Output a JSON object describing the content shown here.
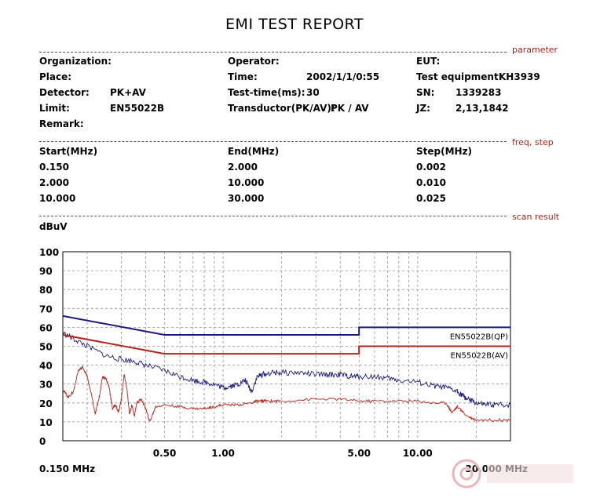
{
  "report": {
    "title": "EMI TEST REPORT",
    "sections": {
      "parameter": "parameter",
      "freq_step": "freq, step",
      "scan_result": "scan result"
    },
    "parameters": {
      "organization_label": "Organization:",
      "operator_label": "Operator:",
      "eut_label": "EUT:",
      "place_label": "Place:",
      "time_label": "Time:",
      "time_value": "2002/1/1/0:55",
      "test_equipment_label": "Test equipment:",
      "test_equipment_value": "KH3939",
      "detector_label": "Detector:",
      "detector_value": "PK+AV",
      "test_time_label": "Test-time(ms):",
      "test_time_value": "30",
      "sn_label": "SN:",
      "sn_value": "1339283",
      "limit_label": "Limit:",
      "limit_value": "EN55022B",
      "transductor_label": "Transductor(PK/AV):",
      "transductor_value": "PK  /  AV",
      "jz_label": "JZ:",
      "jz_value": "2,13,1842",
      "remark_label": "Remark:"
    },
    "freq_table": {
      "headers": [
        "Start(MHz)",
        "End(MHz)",
        "Step(MHz)"
      ],
      "rows": [
        [
          "0.150",
          "2.000",
          "0.002"
        ],
        [
          "2.000",
          "10.000",
          "0.010"
        ],
        [
          "10.000",
          "30.000",
          "0.025"
        ]
      ]
    }
  },
  "chart_data": {
    "type": "line",
    "ylabel": "dBuV",
    "ylim": [
      0,
      100
    ],
    "y_ticks": [
      "100",
      "90",
      "80",
      "70",
      "60",
      "50",
      "40",
      "30",
      "20",
      "10",
      "0"
    ],
    "xscale": "log",
    "xlim": [
      0.15,
      30
    ],
    "x_ticks": [
      {
        "v": 0.5,
        "label": "0.50"
      },
      {
        "v": 1,
        "label": "1.00"
      },
      {
        "v": 5,
        "label": "5.00"
      },
      {
        "v": 10,
        "label": "10.00"
      }
    ],
    "x_start_label": "0.150 MHz",
    "x_end_label": "30.000 MHz",
    "grid": true,
    "colors": {
      "qp_limit": "#1a1a7a",
      "av_limit": "#b22418",
      "pk_trace": "#1a1a7a",
      "av_trace": "#b22418",
      "grid": "#909090"
    },
    "series": [
      {
        "name": "EN55022B(QP)",
        "kind": "limit",
        "x": [
          0.15,
          0.5,
          0.5,
          5,
          5,
          30
        ],
        "y": [
          66,
          56,
          56,
          56,
          60,
          60
        ]
      },
      {
        "name": "EN55022B(AV)",
        "kind": "limit",
        "x": [
          0.15,
          0.5,
          0.5,
          5,
          5,
          30
        ],
        "y": [
          56,
          46,
          46,
          46,
          50,
          50
        ]
      },
      {
        "name": "",
        "kind": "trace",
        "x": [
          0.15,
          0.17,
          0.2,
          0.25,
          0.3,
          0.35,
          0.4,
          0.5,
          0.6,
          0.7,
          0.8,
          0.9,
          1.0,
          1.1,
          1.2,
          1.3,
          1.4,
          1.5,
          1.6,
          1.8,
          2.0,
          2.5,
          3.0,
          3.5,
          4.0,
          4.5,
          5.0,
          6.0,
          7.0,
          8.0,
          10.0,
          12.0,
          14.0,
          16.0,
          17.0,
          18.0,
          20.0,
          22.0,
          25.0,
          30.0
        ],
        "y": [
          57,
          54,
          50,
          45,
          43,
          42,
          40,
          37,
          34,
          32,
          31,
          30,
          28,
          29,
          30,
          32,
          26,
          34,
          35,
          36,
          36,
          36,
          35,
          35,
          35,
          34,
          34,
          34,
          33,
          32,
          31,
          29,
          28,
          26,
          24,
          22,
          20,
          19,
          19,
          19
        ]
      },
      {
        "name": "",
        "kind": "trace",
        "x": [
          0.15,
          0.16,
          0.17,
          0.18,
          0.19,
          0.2,
          0.21,
          0.22,
          0.23,
          0.24,
          0.25,
          0.26,
          0.27,
          0.28,
          0.29,
          0.3,
          0.31,
          0.32,
          0.33,
          0.34,
          0.35,
          0.36,
          0.38,
          0.4,
          0.42,
          0.45,
          0.5,
          0.6,
          0.7,
          0.8,
          0.9,
          1.0,
          1.2,
          1.4,
          1.5,
          1.6,
          1.8,
          2.0,
          3.0,
          4.0,
          5.0,
          6.0,
          8.0,
          10.0,
          12.0,
          14.0,
          15.0,
          16.0,
          18.0,
          20.0,
          25.0,
          30.0
        ],
        "y": [
          27,
          23,
          26,
          37,
          39,
          34,
          25,
          14,
          22,
          34,
          33,
          28,
          17,
          19,
          15,
          22,
          35,
          28,
          14,
          19,
          13,
          20,
          22,
          17,
          10,
          18,
          19,
          18,
          17,
          17,
          18,
          19,
          19,
          20,
          21,
          21,
          21,
          21,
          22,
          22,
          21,
          21,
          21,
          21,
          20,
          20,
          15,
          18,
          13,
          11,
          11,
          11
        ]
      }
    ]
  }
}
